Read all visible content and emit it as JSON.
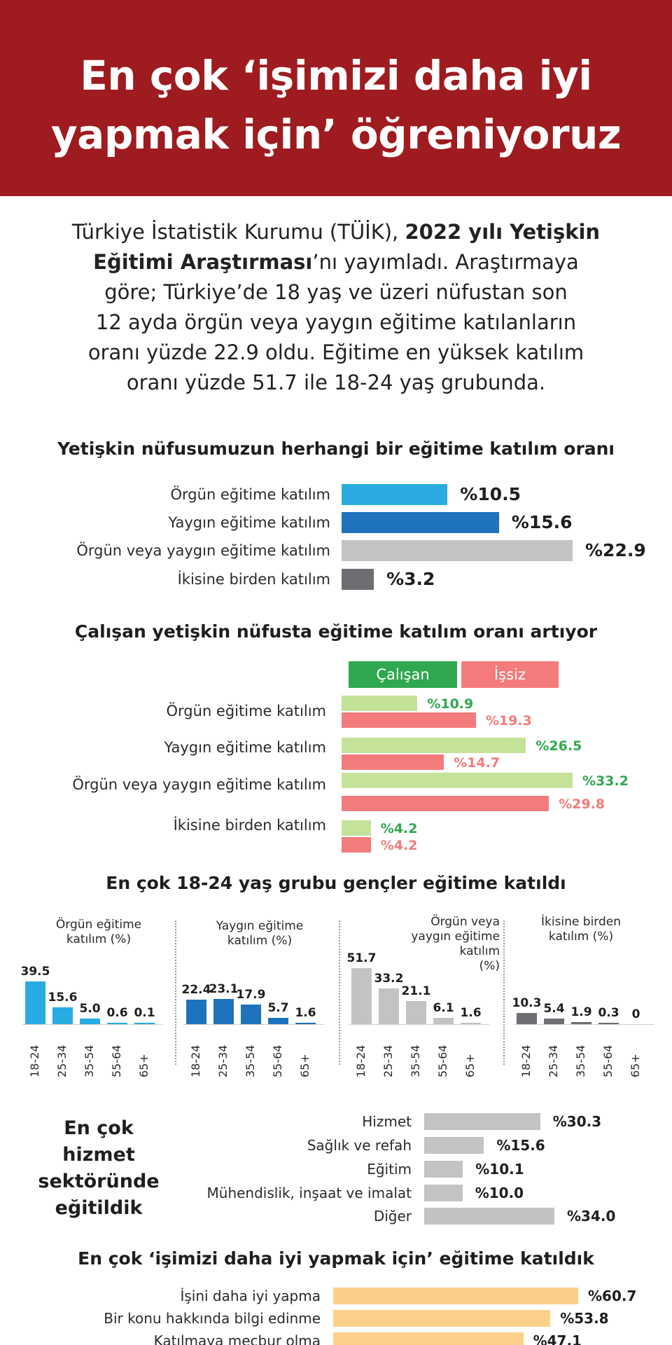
{
  "header": {
    "title_line1": "En çok ‘işimizi daha iyi",
    "title_line2": "yapmak için’ öğreniyoruz"
  },
  "intro": {
    "l1": "Türkiye İstatistik Kurumu (TÜİK), ",
    "l1_bold": "2022 yılı Yetişkin",
    "l2_bold": "Eğitimi Araştırması",
    "l2": "’nı yayımladı. Araştırmaya",
    "l3": "göre; Türkiye’de 18 yaş ve üzeri nüfustan son",
    "l4": "12 ayda örgün veya yaygın eğitime katılanların",
    "l5": "oranı yüzde 22.9 oldu. Eğitime en yüksek katılım",
    "l6": "oranı yüzde 51.7 ile 18-24 yaş grubunda."
  },
  "colors": {
    "header_bg": "#9e1b20",
    "orgun": "#29abe2",
    "yaygin": "#1f72be",
    "both_gray": "#c3c3c3",
    "ikisine": "#6d6e71",
    "calisan": "#2fa84f",
    "calisan_bar": "#c5e29a",
    "issiz": "#f47b7b",
    "sector_bar": "#c3c3c3",
    "reason_bar": "#fdd08a"
  },
  "chart_data": [
    {
      "type": "bar",
      "orientation": "horizontal",
      "title": "Yetişkin nüfusumuzun herhangi bir eğitime katılım oranı",
      "categories": [
        "Örgün eğitime katılım",
        "Yaygın eğitime katılım",
        "Örgün veya yaygın eğitime katılım",
        "İkisine birden katılım"
      ],
      "values": [
        10.5,
        15.6,
        22.9,
        3.2
      ],
      "labels": [
        "%10.5",
        "%15.6",
        "%22.9",
        "%3.2"
      ],
      "colors": [
        "#29abe2",
        "#1f72be",
        "#c3c3c3",
        "#6d6e71"
      ]
    },
    {
      "type": "bar",
      "orientation": "horizontal",
      "title": "Çalışan yetişkin nüfusta eğitime katılım oranı artıyor",
      "categories": [
        "Örgün eğitime katılım",
        "Yaygın eğitime katılım",
        "Örgün veya yaygın eğitime katılım",
        "İkisine birden katılım"
      ],
      "series": [
        {
          "name": "Çalışan",
          "values": [
            10.9,
            26.5,
            33.2,
            4.2
          ],
          "labels": [
            "%10.9",
            "%26.5",
            "%33.2",
            "%4.2"
          ]
        },
        {
          "name": "İşsiz",
          "values": [
            19.3,
            14.7,
            29.8,
            4.2
          ],
          "labels": [
            "%19.3",
            "%14.7",
            "%29.8",
            "%4.2"
          ]
        }
      ],
      "legend": "top"
    },
    {
      "type": "bar",
      "title": "En çok 18-24 yaş grubu gençler eğitime katıldı",
      "categories": [
        "18-24",
        "25-34",
        "35-54",
        "55-64",
        "65+"
      ],
      "panels": [
        {
          "title_lines": [
            "Örgün eğitime",
            "katılım (%)"
          ],
          "values": [
            39.5,
            15.6,
            5.0,
            0.6,
            0.1
          ],
          "labels": [
            "39.5",
            "15.6",
            "5.0",
            "0.6",
            "0.1"
          ],
          "color": "#29abe2"
        },
        {
          "title_lines": [
            "Yaygın eğitime",
            "katılım (%)"
          ],
          "values": [
            22.4,
            23.1,
            17.9,
            5.7,
            1.6
          ],
          "labels": [
            "22.4",
            "23.1",
            "17.9",
            "5.7",
            "1.6"
          ],
          "color": "#1f72be"
        },
        {
          "title_lines": [
            "Örgün veya",
            "yaygın eğitime",
            "katılım",
            "(%)"
          ],
          "values": [
            51.7,
            33.2,
            21.1,
            6.1,
            1.6
          ],
          "labels": [
            "51.7",
            "33.2",
            "21.1",
            "6.1",
            "1.6"
          ],
          "color": "#c3c3c3"
        },
        {
          "title_lines": [
            "İkisine birden",
            "katılım (%)"
          ],
          "values": [
            10.3,
            5.4,
            1.9,
            0.3,
            0
          ],
          "labels": [
            "10.3",
            "5.4",
            "1.9",
            "0.3",
            "0"
          ],
          "color": "#6d6e71"
        }
      ]
    },
    {
      "type": "bar",
      "orientation": "horizontal",
      "title_lines": [
        "En çok",
        "hizmet",
        "sektöründe",
        "eğitildik"
      ],
      "categories": [
        "Hizmet",
        "Sağlık ve refah",
        "Eğitim",
        "Mühendislik, inşaat ve imalat",
        "Diğer"
      ],
      "values": [
        30.3,
        15.6,
        10.1,
        10.0,
        34.0
      ],
      "labels": [
        "%30.3",
        "%15.6",
        "%10.1",
        "%10.0",
        "%34.0"
      ]
    },
    {
      "type": "bar",
      "orientation": "horizontal",
      "title": "En çok ‘işimizi daha iyi yapmak için’ eğitime katıldık",
      "categories": [
        "İşini daha iyi yapma",
        "Bir konu hakkında bilgi edinme",
        "Katılmaya mecbur olma"
      ],
      "values": [
        60.7,
        53.8,
        47.1
      ],
      "labels": [
        "%60.7",
        "%53.8",
        "%47.1"
      ]
    }
  ]
}
